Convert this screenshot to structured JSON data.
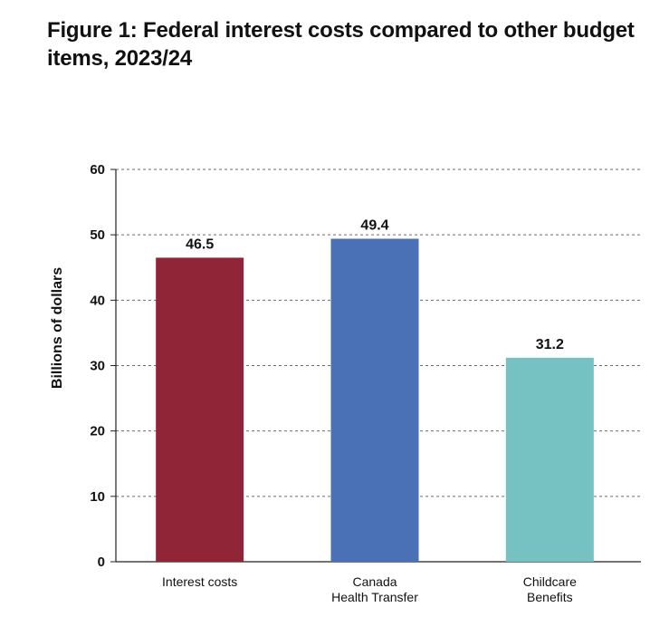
{
  "chart_data": {
    "type": "bar",
    "title": "Figure 1: Federal interest costs compared to other budget items, 2023/24",
    "ylabel": "Billions of dollars",
    "xlabel": "",
    "ylim": [
      0,
      60
    ],
    "yticks": [
      "0",
      "10",
      "20",
      "30",
      "40",
      "50",
      "60"
    ],
    "grid": true,
    "categories": [
      [
        "Interest costs"
      ],
      [
        "Canada",
        "Health Transfer"
      ],
      [
        "Childcare",
        "Benefits"
      ]
    ],
    "values": [
      46.5,
      49.4,
      31.2
    ],
    "data_labels": [
      "46.5",
      "49.4",
      "31.2"
    ],
    "colors": [
      "#8f2537",
      "#4a70b6",
      "#76c1c2"
    ]
  }
}
